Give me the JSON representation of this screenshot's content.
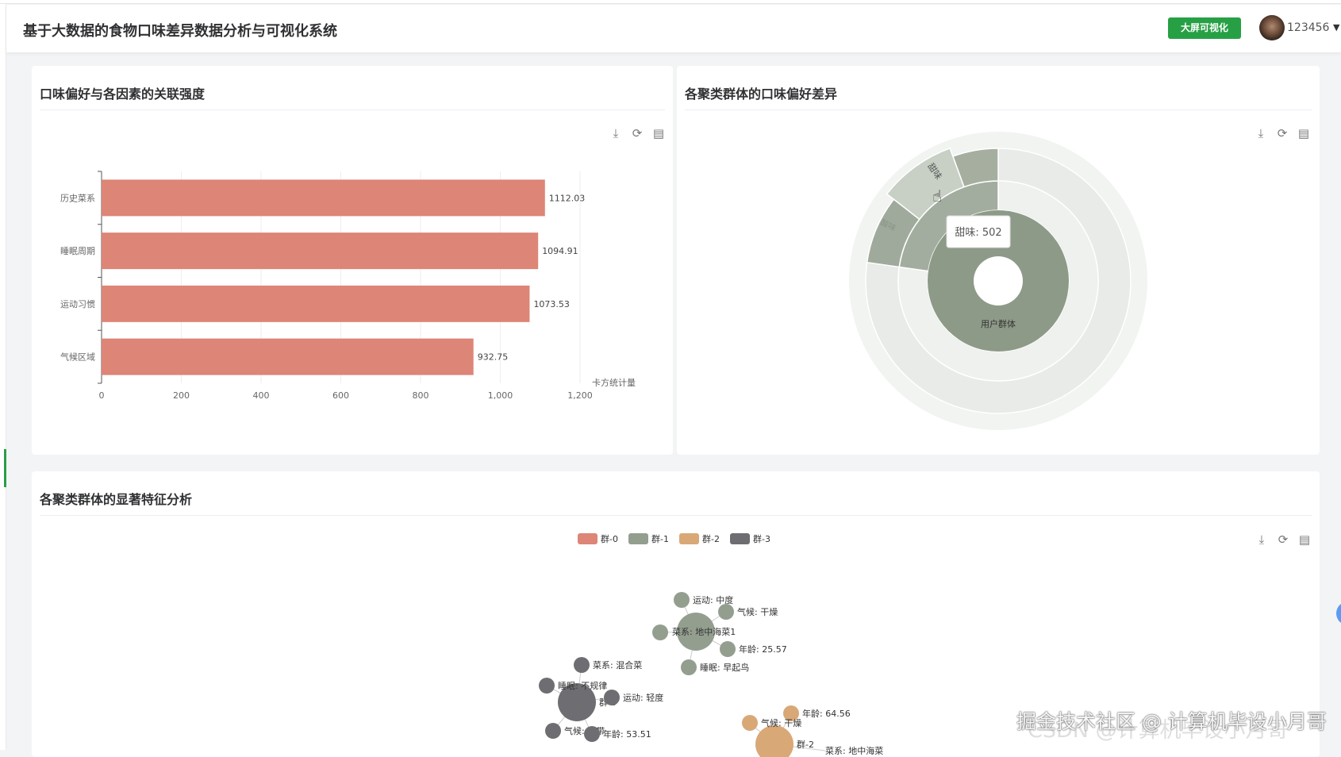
{
  "header": {
    "title": "基于大数据的食物口味差异数据分析与可视化系统",
    "bigscreen_button": "大屏可视化",
    "username": "123456",
    "caret": "▼"
  },
  "toolbox_icons": [
    "download-icon",
    "refresh-icon",
    "data-view-icon"
  ],
  "colors": {
    "accent": "#27a045",
    "bar": "#dd8577",
    "cluster0": "#dd8577",
    "cluster1": "#939e8f",
    "cluster2": "#d9a877",
    "cluster3": "#6e6e72"
  },
  "panel1": {
    "title": "口味偏好与各因素的关联强度"
  },
  "panel2": {
    "title": "各聚类群体的口味偏好差异"
  },
  "panel3": {
    "title": "各聚类群体的显著特征分析"
  },
  "chart_data": [
    {
      "type": "bar",
      "orientation": "horizontal",
      "categories": [
        "历史菜系",
        "睡眠周期",
        "运动习惯",
        "气候区域"
      ],
      "values": [
        1112.03,
        1094.91,
        1073.53,
        932.75
      ],
      "xlabel": "卡方统计量",
      "xlim": [
        0,
        1200
      ],
      "xticks": [
        "0",
        "200",
        "400",
        "600",
        "800",
        "1,000",
        "1,200"
      ],
      "grid": true
    },
    {
      "type": "sunburst",
      "root_label": "用户群体",
      "highlighted_labels": [
        "甜味",
        "酸味"
      ],
      "tooltip": "甜味: 502"
    },
    {
      "type": "graph",
      "legend": [
        "群-0",
        "群-1",
        "群-2",
        "群-3"
      ],
      "legend_placement": "top",
      "nodes": [
        {
          "group": 1,
          "label": "菜系: 地中海菜1",
          "center": true
        },
        {
          "group": 1,
          "label": "运动: 中度"
        },
        {
          "group": 1,
          "label": "气候: 干燥"
        },
        {
          "group": 1,
          "label": ""
        },
        {
          "group": 1,
          "label": "年龄: 25.57"
        },
        {
          "group": 1,
          "label": "睡眠: 早起鸟"
        },
        {
          "group": 3,
          "label": "群-3",
          "center": true
        },
        {
          "group": 3,
          "label": "菜系: 混合菜"
        },
        {
          "group": 3,
          "label": "睡眠: 不规律"
        },
        {
          "group": 3,
          "label": "运动: 轻度"
        },
        {
          "group": 3,
          "label": "气候: 热带"
        },
        {
          "group": 3,
          "label": "年龄: 53.51"
        },
        {
          "group": 2,
          "label": "群-2",
          "center": true
        },
        {
          "group": 2,
          "label": "年龄: 64.56"
        },
        {
          "group": 2,
          "label": "气候: 干燥"
        },
        {
          "group": 2,
          "label": "菜系: 地中海菜"
        }
      ]
    }
  ],
  "watermark": "掘金技术社区 @ 计算机毕设小月哥",
  "watermark2": "CSDN @计算机毕设小月哥"
}
